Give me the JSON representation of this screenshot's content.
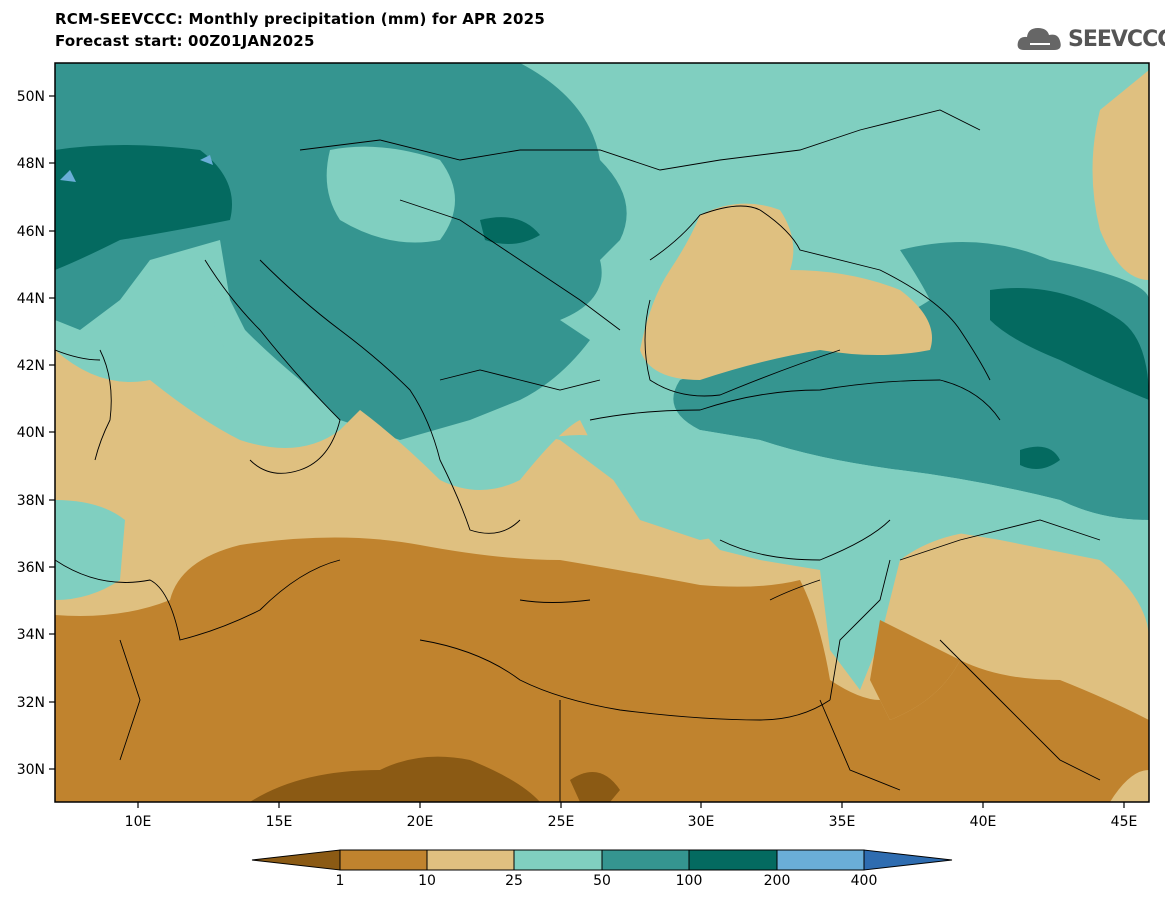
{
  "header": {
    "title": "RCM-SEEVCCC: Monthly precipitation (mm) for APR 2025",
    "subtitle": "Forecast start: 00Z01JAN2025",
    "logo_text": "SEEVCCC"
  },
  "map": {
    "lat_labels": [
      "50N",
      "48N",
      "46N",
      "44N",
      "42N",
      "40N",
      "38N",
      "36N",
      "34N",
      "32N",
      "30N"
    ],
    "lon_labels": [
      "10E",
      "15E",
      "20E",
      "25E",
      "30E",
      "35E",
      "40E",
      "45E"
    ]
  },
  "colorbar": {
    "boundaries": [
      "1",
      "10",
      "25",
      "50",
      "100",
      "200",
      "400"
    ],
    "colors": [
      "#8b5a14",
      "#c0832e",
      "#dfc080",
      "#80cfc0",
      "#359590",
      "#046a60",
      "#6aaed8",
      "#2e6cb0"
    ]
  }
}
